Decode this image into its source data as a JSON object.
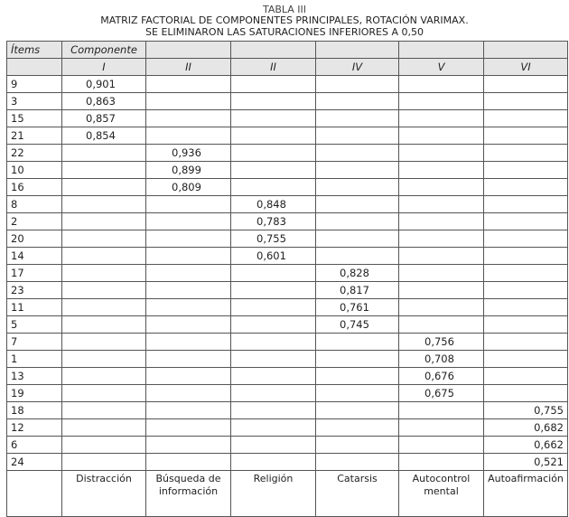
{
  "title": {
    "label": "TABLA III",
    "line1": "MATRIZ FACTORIAL DE COMPONENTES PRINCIPALES, ROTACIÓN VARIMAX.",
    "line2": "SE ELIMINARON LAS SATURACIONES INFERIORES A 0,50"
  },
  "header": {
    "items": "Ítems",
    "componente": "Componente",
    "components": [
      "I",
      "II",
      "II",
      "IV",
      "V",
      "VI"
    ]
  },
  "rows": [
    {
      "item": "9",
      "col": 1,
      "value": "0,901"
    },
    {
      "item": "3",
      "col": 1,
      "value": "0,863"
    },
    {
      "item": "15",
      "col": 1,
      "value": "0,857"
    },
    {
      "item": "21",
      "col": 1,
      "value": "0,854"
    },
    {
      "item": "22",
      "col": 2,
      "value": "0,936"
    },
    {
      "item": "10",
      "col": 2,
      "value": "0,899"
    },
    {
      "item": "16",
      "col": 2,
      "value": "0,809"
    },
    {
      "item": "8",
      "col": 3,
      "value": "0,848"
    },
    {
      "item": "2",
      "col": 3,
      "value": "0,783"
    },
    {
      "item": "20",
      "col": 3,
      "value": "0,755"
    },
    {
      "item": "14",
      "col": 3,
      "value": "0,601"
    },
    {
      "item": "17",
      "col": 4,
      "value": "0,828"
    },
    {
      "item": "23",
      "col": 4,
      "value": "0,817"
    },
    {
      "item": "11",
      "col": 4,
      "value": "0,761"
    },
    {
      "item": "5",
      "col": 4,
      "value": "0,745"
    },
    {
      "item": "7",
      "col": 5,
      "value": "0,756"
    },
    {
      "item": "1",
      "col": 5,
      "value": "0,708"
    },
    {
      "item": "13",
      "col": 5,
      "value": "0,676"
    },
    {
      "item": "19",
      "col": 5,
      "value": "0,675"
    },
    {
      "item": "18",
      "col": 6,
      "value": "0,755"
    },
    {
      "item": "12",
      "col": 6,
      "value": "0,682"
    },
    {
      "item": "6",
      "col": 6,
      "value": "0,662"
    },
    {
      "item": "24",
      "col": 6,
      "value": "0,521"
    }
  ],
  "footer": [
    "Distracción",
    "Búsqueda de información",
    "Religión",
    "Catarsis",
    "Autocontrol mental",
    "Autoafirmación"
  ]
}
